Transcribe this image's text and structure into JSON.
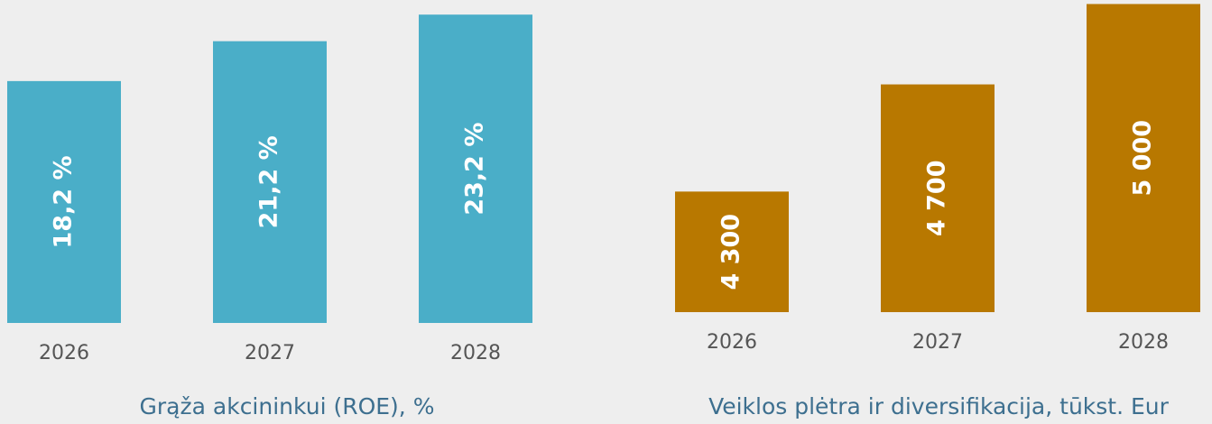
{
  "chart_data": [
    {
      "type": "bar",
      "title": "Grąža akcininkui (ROE), %",
      "categories": [
        "2026",
        "2027",
        "2028"
      ],
      "values": [
        18.2,
        21.2,
        23.2
      ],
      "value_labels": [
        "18,2 %",
        "21,2 %",
        "23,2 %"
      ],
      "color": "#4aaec8",
      "ylim": [
        0,
        24.3
      ]
    },
    {
      "type": "bar",
      "title": "Veiklos plėtra ir diversifikacija, tūkst. Eur",
      "categories": [
        "2026",
        "2027",
        "2028"
      ],
      "values": [
        4300,
        4700,
        5000
      ],
      "value_labels": [
        "4 300",
        "4 700",
        "5 000"
      ],
      "color": "#b87800",
      "ylim": [
        3850,
        5015
      ]
    }
  ]
}
